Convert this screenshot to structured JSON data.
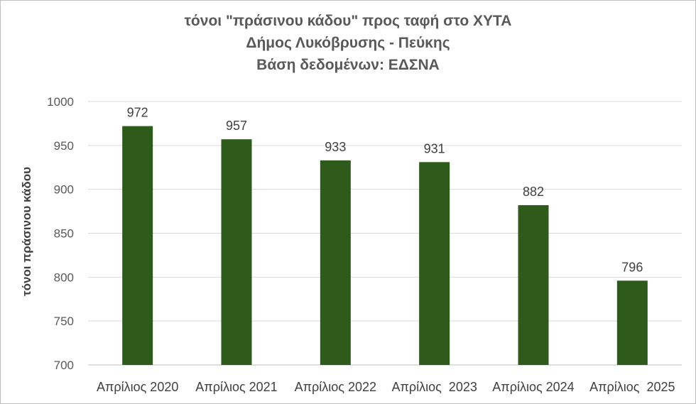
{
  "chart_data": {
    "type": "bar",
    "title_lines": [
      "τόνοι \"πράσινου κάδου\" προς ταφή στο ΧΥΤΑ",
      "Δήμος Λυκόβρυσης - Πεύκης",
      "Βάση δεδομένων: ΕΔΣΝΑ"
    ],
    "ylabel": "τόνοι πράσινου κάδου",
    "xlabel": "",
    "categories": [
      "Απρίλιος 2020",
      "Απρίλιος 2021",
      "Απρίλιος 2022",
      "Απρίλιος  2023",
      "Απρίλιος 2024",
      "Απρίλιος  2025"
    ],
    "values": [
      972,
      957,
      933,
      931,
      882,
      796
    ],
    "data_labels": [
      "972",
      "957",
      "933",
      "931",
      "882",
      "796"
    ],
    "ylim": [
      700,
      1000
    ],
    "yticks": [
      "700",
      "750",
      "800",
      "850",
      "900",
      "950",
      "1000"
    ],
    "grid": true,
    "legend": "none",
    "bar_color": "#2e5a1c",
    "grid_color": "#d9d9d9"
  }
}
